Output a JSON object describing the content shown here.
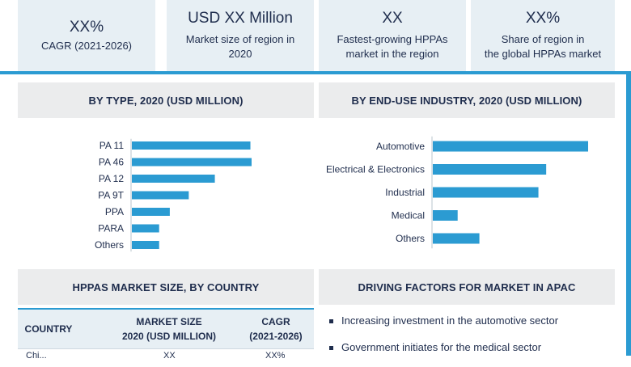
{
  "kpis": [
    {
      "value": "XX%",
      "label": "CAGR (2021-2026)"
    },
    {
      "value": "USD XX Million",
      "label_line1": "Market size of region in",
      "label_line2": "2020"
    },
    {
      "value": "XX",
      "label_line1": "Fastest-growing HPPAs",
      "label_line2": "market in the region"
    },
    {
      "value": "XX%",
      "label_line1": "Share of region in",
      "label_line2": "the global HPPAs  market"
    }
  ],
  "colors": {
    "accent": "#2b9bd2",
    "panel": "#e7eff4",
    "header_bg": "#ebeced",
    "text": "#1f2d4d"
  },
  "sections": {
    "by_type": "BY TYPE, 2020 (USD MILLION)",
    "by_industry": "BY END-USE INDUSTRY, 2020 (USD MILLION)",
    "by_country": "HPPAS MARKET SIZE, BY COUNTRY",
    "drivers": "DRIVING FACTORS FOR MARKET IN APAC"
  },
  "chart_data": [
    {
      "type": "bar",
      "orientation": "horizontal",
      "title": "BY TYPE, 2020 (USD MILLION)",
      "categories": [
        "PA 11",
        "PA 46",
        "PA 12",
        "PA 9T",
        "PPA",
        "PARA",
        "Others"
      ],
      "values": [
        100,
        101,
        70,
        48,
        32,
        23,
        23
      ],
      "grid": false,
      "axis_values_shown": false
    },
    {
      "type": "bar",
      "orientation": "horizontal",
      "title": "BY END-USE INDUSTRY, 2020 (USD MILLION)",
      "categories": [
        "Automotive",
        "Electrical & Electronics",
        "Industrial",
        "Medical",
        "Others"
      ],
      "values": [
        100,
        73,
        68,
        16,
        30
      ],
      "grid": false,
      "axis_values_shown": false
    }
  ],
  "table": {
    "headers": [
      {
        "line1": "COUNTRY"
      },
      {
        "line1": "MARKET SIZE",
        "line2": "2020 (USD MILLION)"
      },
      {
        "line1": "CAGR",
        "line2": "(2021-2026)"
      }
    ],
    "first_row": {
      "country": "Chi...",
      "market_size": "XX",
      "cagr": "XX%"
    }
  },
  "drivers": [
    "Increasing investment in the automotive sector",
    "Government initiates for the medical sector"
  ]
}
